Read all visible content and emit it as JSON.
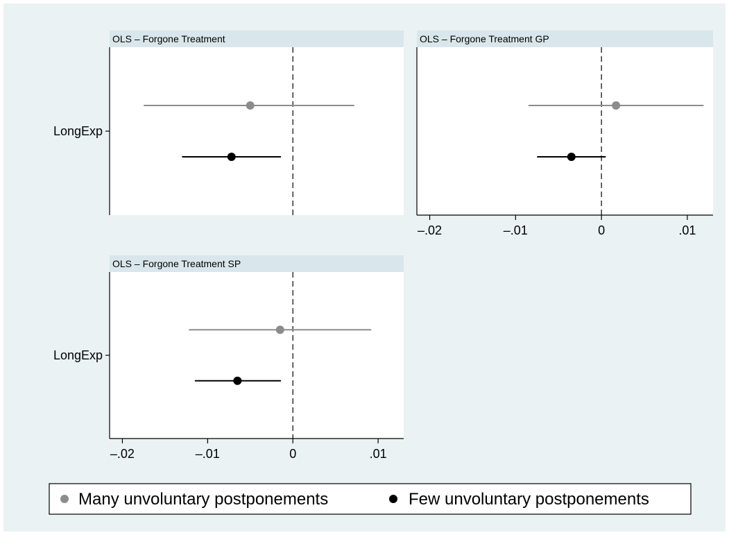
{
  "colors": {
    "background": "#eaf2f3",
    "plot_background": "#ffffff",
    "title_strip": "#d9e6eb",
    "many_series": "#8c8c8c",
    "few_series": "#000000"
  },
  "legend": {
    "items": [
      {
        "label": "Many unvoluntary postponements",
        "color": "#8c8c8c"
      },
      {
        "label": "Few unvoluntary postponements",
        "color": "#000000"
      }
    ]
  },
  "chart_data": [
    {
      "type": "coefficient-plot",
      "title": "OLS – Forgone Treatment",
      "category": "LongExp",
      "xlim": [
        -0.0215,
        0.013
      ],
      "ticks": [
        -0.02,
        -0.01,
        0,
        0.01
      ],
      "tick_labels": [
        "–.02",
        "–.01",
        "0",
        ".01"
      ],
      "show_x_axis": false,
      "reference_line": 0,
      "series": [
        {
          "name": "Many unvoluntary postponements",
          "estimate": -0.005,
          "ci": [
            -0.0175,
            0.0072
          ]
        },
        {
          "name": "Few unvoluntary postponements",
          "estimate": -0.0072,
          "ci": [
            -0.013,
            -0.0014
          ]
        }
      ]
    },
    {
      "type": "coefficient-plot",
      "title": "OLS – Forgone Treatment GP",
      "category": "",
      "xlim": [
        -0.0215,
        0.013
      ],
      "ticks": [
        -0.02,
        -0.01,
        0,
        0.01
      ],
      "tick_labels": [
        "–.02",
        "–.01",
        "0",
        ".01"
      ],
      "show_x_axis": true,
      "reference_line": 0,
      "series": [
        {
          "name": "Many unvoluntary postponements",
          "estimate": 0.0017,
          "ci": [
            -0.0085,
            0.0119
          ]
        },
        {
          "name": "Few unvoluntary postponements",
          "estimate": -0.0035,
          "ci": [
            -0.0075,
            0.0005
          ]
        }
      ]
    },
    {
      "type": "coefficient-plot",
      "title": "OLS – Forgone Treatment SP",
      "category": "LongExp",
      "xlim": [
        -0.0215,
        0.013
      ],
      "ticks": [
        -0.02,
        -0.01,
        0,
        0.01
      ],
      "tick_labels": [
        "–.02",
        "–.01",
        "0",
        ".01"
      ],
      "show_x_axis": true,
      "reference_line": 0,
      "series": [
        {
          "name": "Many unvoluntary postponements",
          "estimate": -0.0015,
          "ci": [
            -0.0122,
            0.0092
          ]
        },
        {
          "name": "Few unvoluntary postponements",
          "estimate": -0.0065,
          "ci": [
            -0.0115,
            -0.0014
          ]
        }
      ]
    }
  ]
}
